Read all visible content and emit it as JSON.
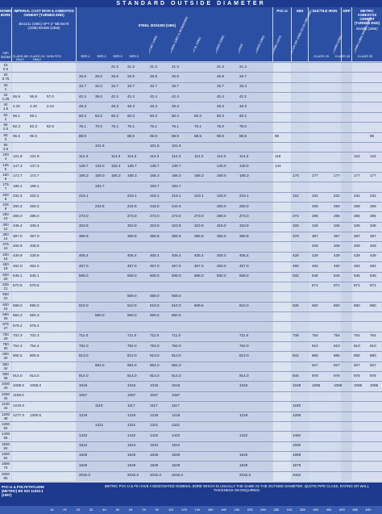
{
  "title": "STANDARD OUTSIDE DIAMETER",
  "headers": {
    "nominal_bore": "NOMINAL BORE",
    "imperial": "IMPERIAL CAST IRON & ASBESTOS CEMENT (TURNED END)",
    "imperial_std": "BS1211 (1981) SPT 2\" NB BS78 (1938) BS486 (1956)",
    "steel": "STEEL ISO/4200 (1991)",
    "pvcu": "PVC-U",
    "abs": "ABS",
    "ductile": "DUCTILE IRON",
    "grp": "GRP",
    "metric_ac": "METRIC ASBESTOS CEMENT (TURNED END)",
    "metric_ac_std": "BS486 (1956)",
    "units": "mm inches",
    "sub_labels": [
      "CLASS AB ONLY",
      "CLASS CD ONLY",
      "NON STD",
      "SER.1",
      "SER.2",
      "SER.3",
      "SER.3",
      "CLASS 15",
      "CLASS 20",
      "CLASS 25"
    ],
    "diagonal": [
      "BS1387 (1985)",
      "BS3601 (1987) & BS3600/3601",
      "API 5L (1982)",
      "BS3505 (1968)",
      "BS5556",
      "BS6030 (1983)",
      "BS4991 (1974)",
      "BS EN 545 (1995) BS EN 598 (1995)",
      "BS5480 (1990)",
      "BS5480 (1990) BS6464 (1984)"
    ]
  },
  "rows": [
    {
      "nb": [
        "15",
        "0.5"
      ],
      "cells": {
        "c6": "21.3",
        "c7": "21.3",
        "c8": "21.3",
        "c9": "21.3",
        "c11": "21.3",
        "c12": "21.4"
      }
    },
    {
      "nb": [
        "20",
        "0.75"
      ],
      "cells": {
        "c4": "26.9",
        "c5": "25.0",
        "c6": "26.9",
        "c7": "26.9",
        "c8": "26.9",
        "c9": "26.9",
        "c11": "26.9",
        "c12": "26.7"
      }
    },
    {
      "nb": [
        "25",
        "1"
      ],
      "cells": {
        "c4": "33.7",
        "c5": "32.0",
        "c6": "33.7",
        "c7": "33.7",
        "c8": "33.7",
        "c9": "33.7",
        "c11": "33.7",
        "c12": "33.4"
      }
    },
    {
      "nb": [
        "32",
        "1.25"
      ],
      "cells": {
        "c1": "55.9",
        "c2": "55.9",
        "c3": "57.0",
        "c4": "42.4",
        "c5": "38.0",
        "c6": "42.4",
        "c7": "42.4",
        "c8": "42.4",
        "c9": "42.4",
        "c11": "42.4",
        "c12": "42.2"
      }
    },
    {
      "nb": [
        "40",
        "1.5"
      ],
      "cells": {
        "c1": "2.20",
        "c2": "2.20",
        "c3": "2.24",
        "c4": "48.3",
        "c6": "48.3",
        "c7": "48.3",
        "c8": "48.3",
        "c9": "48.3",
        "c11": "48.3",
        "c12": "48.3"
      }
    },
    {
      "nb": [
        "50",
        "2"
      ],
      "cells": {
        "c1": "69.1",
        "c2": "69.1",
        "c4": "60.3",
        "c5": "63.5",
        "c6": "60.3",
        "c7": "60.3",
        "c8": "60.3",
        "c9": "60.3",
        "c10": "60.3",
        "c11": "60.3",
        "c12": "60.2"
      }
    },
    {
      "nb": [
        "65",
        "2.5"
      ],
      "cells": {
        "c1": "82.3",
        "c2": "82.3",
        "c3": "82.5",
        "c4": "76.1",
        "c5": "70.0",
        "c6": "76.1",
        "c7": "76.1",
        "c8": "76.1",
        "c9": "76.1",
        "c10": "76.1",
        "c11": "75.0",
        "c12": "75.0"
      }
    },
    {
      "nb": [
        "80",
        "3"
      ],
      "cells": {
        "c1": "95.5",
        "c2": "95.5",
        "c4": "88.9",
        "c7": "88.9",
        "c8": "88.9",
        "c9": "88.9",
        "c10": "88.9",
        "c11": "88.9",
        "c12": "88.9",
        "c13": "98",
        "c18": "96"
      }
    },
    {
      "nb": [
        "90",
        "3.5"
      ],
      "cells": {
        "c5": "101.6",
        "c8": "101.6",
        "c9": "101.6"
      }
    },
    {
      "nb": [
        "100",
        "4"
      ],
      "cells": {
        "c1": "121.9",
        "c2": "121.9",
        "c4": "114.3",
        "c6": "114.3",
        "c7": "114.3",
        "c8": "114.3",
        "c9": "114.3",
        "c10": "114.3",
        "c11": "114.3",
        "c12": "114.3",
        "c13": "118",
        "c17": "122",
        "c18": "122"
      }
    },
    {
      "nb": [
        "125",
        "5"
      ],
      "cells": {
        "c1": "147.3",
        "c2": "147.3",
        "c4": "139.7",
        "c5": "133.0",
        "c6": "152.4",
        "c7": "139.7",
        "c8": "139.7",
        "c9": "139.7",
        "c11": "140.0",
        "c12": "140.0",
        "c13": "144"
      }
    },
    {
      "nb": [
        "150",
        "6"
      ],
      "cells": {
        "c1": "172.7",
        "c2": "172.7",
        "c4": "168.3",
        "c5": "159.0",
        "c6": "168.3",
        "c7": "168.3",
        "c8": "168.3",
        "c9": "168.3",
        "c10": "168.3",
        "c11": "160.0",
        "c12": "168.3",
        "c14": "170",
        "c15": "177",
        "c16": "177",
        "c17": "177",
        "c18": "177"
      }
    },
    {
      "nb": [
        "175",
        "7"
      ],
      "cells": {
        "c1": "198.1",
        "c2": "198.1",
        "c5": "193.7",
        "c8": "193.7",
        "c9": "193.7"
      }
    },
    {
      "nb": [
        "200",
        "8"
      ],
      "cells": {
        "c1": "232.2",
        "c2": "232.2",
        "c4": "219.1",
        "c7": "219.1",
        "c8": "219.1",
        "c9": "219.1",
        "c10": "219.1",
        "c11": "225.0",
        "c12": "219.1",
        "c14": "222",
        "c15": "232",
        "c16": "232",
        "c17": "232",
        "c18": "232"
      }
    },
    {
      "nb": [
        "225",
        "9"
      ],
      "cells": {
        "c1": "260.2",
        "c2": "260.2",
        "c5": "244.5",
        "c7": "244.5",
        "c8": "244.5",
        "c9": "244.5",
        "c11": "250.0",
        "c12": "250.0",
        "c15": "259",
        "c16": "259",
        "c17": "259",
        "c18": "259"
      }
    },
    {
      "nb": [
        "250",
        "10"
      ],
      "cells": {
        "c1": "286.0",
        "c2": "286.0",
        "c4": "273.0",
        "c7": "273.0",
        "c8": "273.0",
        "c9": "273.0",
        "c10": "273.0",
        "c11": "280.0",
        "c12": "273.0",
        "c14": "274",
        "c15": "286",
        "c16": "286",
        "c17": "286",
        "c18": "286"
      }
    },
    {
      "nb": [
        "300",
        "12"
      ],
      "cells": {
        "c1": "345.4",
        "c2": "345.4",
        "c4": "323.9",
        "c7": "323.9",
        "c8": "323.9",
        "c9": "323.9",
        "c10": "323.9",
        "c11": "315.0",
        "c12": "323.9",
        "c14": "326",
        "c15": "345",
        "c16": "345",
        "c17": "345",
        "c18": "345"
      }
    },
    {
      "nb": [
        "350",
        "14"
      ],
      "cells": {
        "c1": "387.0",
        "c2": "387.0",
        "c4": "355.6",
        "c7": "355.6",
        "c8": "355.6",
        "c9": "355.6",
        "c10": "355.6",
        "c11": "355.0",
        "c12": "355.6",
        "c14": "378",
        "c15": "387",
        "c16": "387",
        "c17": "387",
        "c18": "387"
      }
    },
    {
      "nb": [
        "375",
        "15"
      ],
      "cells": {
        "c1": "408.9",
        "c2": "408.9",
        "c15": "409",
        "c16": "409",
        "c17": "409",
        "c18": "409"
      }
    },
    {
      "nb": [
        "400",
        "16"
      ],
      "cells": {
        "c1": "439.9",
        "c2": "439.9",
        "c4": "406.4",
        "c7": "406.4",
        "c8": "406.4",
        "c9": "406.4",
        "c10": "406.4",
        "c11": "400.0",
        "c12": "406.4",
        "c14": "429",
        "c15": "439",
        "c16": "439",
        "c17": "439",
        "c18": "439"
      }
    },
    {
      "nb": [
        "450",
        "18"
      ],
      "cells": {
        "c1": "492.0",
        "c2": "492.0",
        "c4": "457.0",
        "c7": "457.0",
        "c8": "457.0",
        "c9": "457.0",
        "c10": "457.0",
        "c11": "450.0",
        "c12": "457.0",
        "c14": "480",
        "c15": "492",
        "c16": "492",
        "c17": "492",
        "c18": "492"
      }
    },
    {
      "nb": [
        "500",
        "20"
      ],
      "cells": {
        "c1": "545.1",
        "c2": "545.1",
        "c4": "508.0",
        "c7": "508.0",
        "c8": "508.0",
        "c9": "508.0",
        "c10": "508.0",
        "c11": "500.0",
        "c12": "508.0",
        "c14": "532",
        "c15": "545",
        "c16": "545",
        "c17": "545",
        "c18": "545"
      }
    },
    {
      "nb": [
        "525",
        "21"
      ],
      "cells": {
        "c1": "570.6",
        "c2": "570.6",
        "c15": "571",
        "c16": "571",
        "c17": "571",
        "c18": "571"
      }
    },
    {
      "nb": [
        "550",
        "22"
      ],
      "cells": {
        "c7": "559.0",
        "c8": "559.0",
        "c9": "559.0"
      }
    },
    {
      "nb": [
        "600",
        "24"
      ],
      "cells": {
        "c1": "598.0",
        "c2": "598.0",
        "c4": "610.0",
        "c7": "610.0",
        "c8": "610.0",
        "c9": "610.0",
        "c10": "609.6",
        "c12": "610.0",
        "c14": "635",
        "c15": "650",
        "c16": "650",
        "c17": "650",
        "c18": "650"
      }
    },
    {
      "nb": [
        "650",
        "26"
      ],
      "cells": {
        "c1": "650.3",
        "c2": "650.3",
        "c5": "660.0",
        "c7": "660.0",
        "c8": "660.0",
        "c9": "660.0"
      }
    },
    {
      "nb": [
        "675",
        "27"
      ],
      "cells": {
        "c1": "676.4",
        "c2": "676.4"
      }
    },
    {
      "nb": [
        "700",
        "28"
      ],
      "cells": {
        "c1": "702.3",
        "c2": "702.3",
        "c4": "711.0",
        "c7": "711.0",
        "c8": "711.0",
        "c9": "711.0",
        "c12": "711.0",
        "c14": "738",
        "c15": "754",
        "c16": "754",
        "c17": "754",
        "c18": "754"
      }
    },
    {
      "nb": [
        "750",
        "30"
      ],
      "cells": {
        "c1": "754.4",
        "c2": "754.4",
        "c4": "762.0",
        "c7": "762.0",
        "c8": "762.0",
        "c9": "762.0",
        "c12": "762.0",
        "c15": "810",
        "c16": "810",
        "c17": "810",
        "c18": "810"
      }
    },
    {
      "nb": [
        "800",
        "32"
      ],
      "cells": {
        "c1": "806.5",
        "c2": "806.5",
        "c4": "813.0",
        "c7": "813.0",
        "c8": "813.0",
        "c9": "813.0",
        "c12": "813.0",
        "c14": "842",
        "c15": "865",
        "c16": "865",
        "c17": "865",
        "c18": "865"
      }
    },
    {
      "nb": [
        "850",
        "34"
      ],
      "cells": {
        "c5": "864.0",
        "c7": "864.0",
        "c8": "864.0",
        "c9": "864.0",
        "c15": "927",
        "c16": "927",
        "c17": "927",
        "c18": "927"
      }
    },
    {
      "nb": [
        "900",
        "36"
      ],
      "cells": {
        "c1": "914.0",
        "c2": "914.0",
        "c4": "914.0",
        "c7": "914.0",
        "c8": "914.0",
        "c9": "914.0",
        "c12": "914.0",
        "c14": "945",
        "c15": "978",
        "c16": "978",
        "c17": "978",
        "c18": "978"
      }
    },
    {
      "nb": [
        "1000",
        "40"
      ],
      "cells": {
        "c1": "1068.0",
        "c2": "1068.0",
        "c4": "1016",
        "c7": "1016",
        "c8": "1016",
        "c9": "1016",
        "c12": "1016",
        "c14": "1048",
        "c15": "1086",
        "c16": "1086",
        "c17": "1086",
        "c18": "1086"
      }
    },
    {
      "nb": [
        "1050",
        "42"
      ],
      "cells": {
        "c1": "1169.0",
        "c4": "1067",
        "c7": "1067",
        "c8": "1067",
        "c9": "1067"
      }
    },
    {
      "nb": [
        "1100",
        "44"
      ],
      "cells": {
        "c1": "1219.0",
        "c5": "1118",
        "c7": "1117",
        "c8": "1117",
        "c9": "1117",
        "c14": "1158"
      }
    },
    {
      "nb": [
        "1200",
        "48"
      ],
      "cells": {
        "c1": "1277.0",
        "c2": "1300.5",
        "c4": "1219",
        "c7": "1219",
        "c8": "1219",
        "c9": "1219",
        "c12": "1219",
        "c14": "1255"
      }
    },
    {
      "nb": [
        "1300",
        "52"
      ],
      "cells": {
        "c5": "1321",
        "c7": "1321",
        "c8": "1321",
        "c9": "1321"
      }
    },
    {
      "nb": [
        "1400",
        "56"
      ],
      "cells": {
        "c4": "1422",
        "c7": "1422",
        "c8": "1422",
        "c9": "1422",
        "c12": "1422",
        "c14": "1462"
      }
    },
    {
      "nb": [
        "1500",
        "60"
      ],
      "cells": {
        "c4": "1524",
        "c7": "1524",
        "c8": "1524",
        "c9": "1524",
        "c14": "1565"
      }
    },
    {
      "nb": [
        "1600",
        "64"
      ],
      "cells": {
        "c4": "1626",
        "c7": "1626",
        "c8": "1626",
        "c9": "1626",
        "c12": "1626",
        "c14": "1668"
      }
    },
    {
      "nb": [
        "1800",
        "72"
      ],
      "cells": {
        "c4": "1829",
        "c7": "1829",
        "c8": "1829",
        "c9": "1829",
        "c12": "1829",
        "c14": "1875"
      }
    },
    {
      "nb": [
        "2000",
        "80"
      ],
      "cells": {
        "c4": "2032.0",
        "c7": "2032.0",
        "c8": "2032.0",
        "c9": "2032.0",
        "c12": "2032.0",
        "c14": "2082"
      }
    }
  ],
  "footer": {
    "label": "PVC-U & POLYETHYLENE (METRIC) BS ISO 11922-1 (1997)",
    "note": "METRIC PVC-U & PE HAVE A DESIGNATED NOMINAL BORE WHICH IS USUALLY THE SAME AS THE OUTSIDE DIAMETER. QUOTE PIPE CLASS, RATING OR WALL THICKNESS ON ENQUIRIES.",
    "strip": [
      "16",
      "20",
      "25",
      "32",
      "40",
      "50",
      "63",
      "75",
      "90",
      "110",
      "125",
      "140",
      "160",
      "180",
      "200",
      "225",
      "250",
      "280",
      "315",
      "355",
      "400",
      "450",
      "500",
      "560",
      "630"
    ]
  }
}
